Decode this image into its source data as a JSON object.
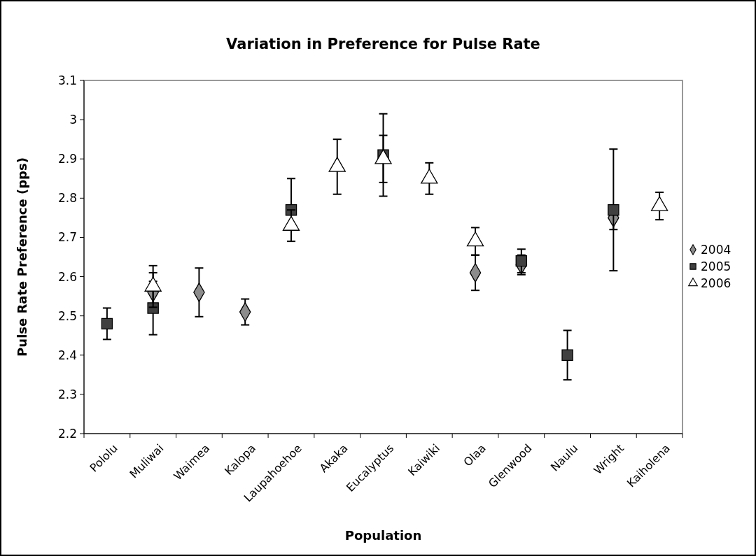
{
  "chart_data": {
    "type": "scatter",
    "title": "Variation in Preference for Pulse Rate",
    "xlabel": "Population",
    "ylabel": "Pulse Rate Preference (pps)",
    "categories": [
      "Pololu",
      "Muliwai",
      "Waimea",
      "Kalopa",
      "Laupahoehoe",
      "Akaka",
      "Eucalyptus",
      "Kaiwiki",
      "Olaa",
      "Glenwood",
      "Naulu",
      "Wright",
      "Kaiholena"
    ],
    "ylim": [
      2.2,
      3.1
    ],
    "yticks": [
      2.2,
      2.3,
      2.4,
      2.5,
      2.6,
      2.7,
      2.8,
      2.9,
      3,
      3.1
    ],
    "grid": false,
    "legend": "right",
    "series": [
      {
        "name": "2004",
        "color": "#8c8c8c",
        "marker": "diamond",
        "values": [
          null,
          2.56,
          2.56,
          2.51,
          null,
          null,
          null,
          null,
          2.61,
          2.63,
          null,
          2.75,
          null
        ],
        "errors": [
          null,
          0.05,
          0.062,
          0.033,
          null,
          null,
          null,
          null,
          0.045,
          0.025,
          null,
          0.03,
          null
        ]
      },
      {
        "name": "2005",
        "color": "#404040",
        "marker": "square",
        "values": [
          2.48,
          2.52,
          null,
          null,
          2.77,
          null,
          2.91,
          null,
          null,
          2.64,
          2.4,
          2.77,
          null
        ],
        "errors": [
          0.04,
          0.068,
          null,
          null,
          0.08,
          null,
          0.105,
          null,
          null,
          0.03,
          0.063,
          0.155,
          null
        ]
      },
      {
        "name": "2006",
        "color": "#ffffff",
        "marker": "triangle",
        "values": [
          null,
          2.575,
          null,
          null,
          2.73,
          2.88,
          2.9,
          2.85,
          2.69,
          null,
          null,
          null,
          2.78
        ],
        "errors": [
          null,
          0.053,
          null,
          null,
          0.04,
          0.07,
          0.06,
          0.04,
          0.035,
          null,
          null,
          null,
          0.035
        ]
      }
    ]
  }
}
